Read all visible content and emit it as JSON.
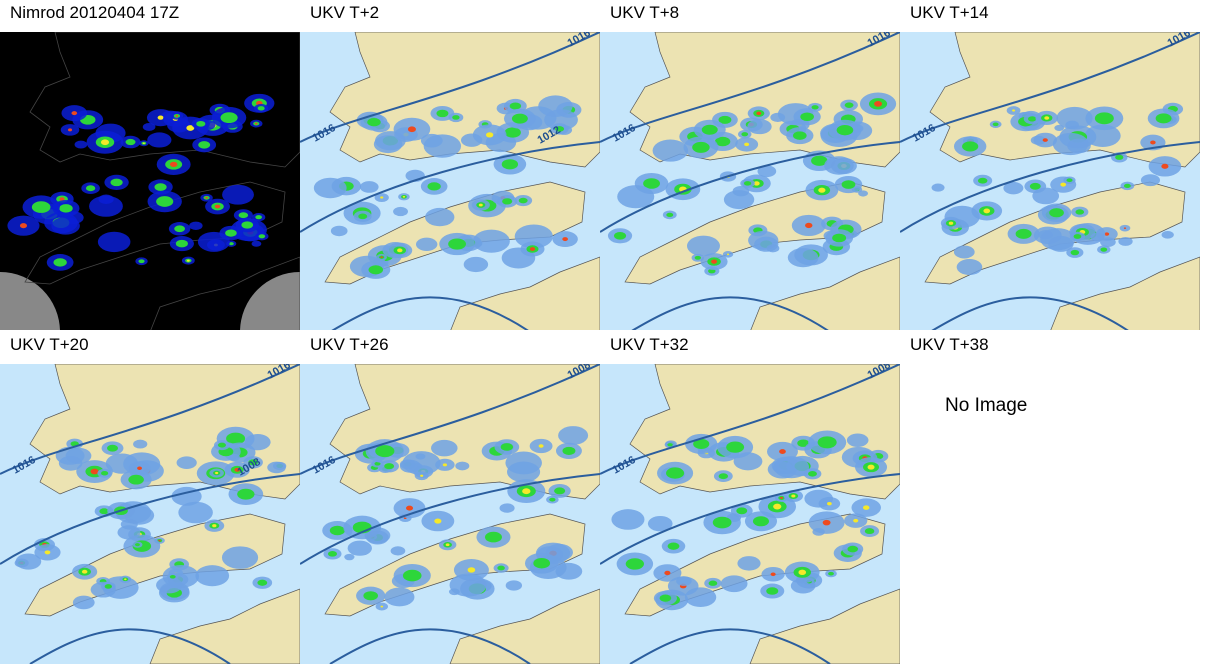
{
  "panels": [
    {
      "title": "Nimrod 20120404 17Z",
      "isobar_labels": []
    },
    {
      "title": "UKV T+2",
      "isobar_labels": [
        "1016",
        "1016",
        "1012"
      ]
    },
    {
      "title": "UKV T+8",
      "isobar_labels": [
        "1016",
        "1016"
      ]
    },
    {
      "title": "UKV T+14",
      "isobar_labels": [
        "1016",
        "1016"
      ]
    },
    {
      "title": "UKV T+20",
      "isobar_labels": [
        "1016",
        "1016",
        "1008"
      ]
    },
    {
      "title": "UKV T+26",
      "isobar_labels": [
        "1016",
        "1008"
      ]
    },
    {
      "title": "UKV T+32",
      "isobar_labels": [
        "1016",
        "1008"
      ]
    },
    {
      "title": "UKV T+38",
      "placeholder": "No Image"
    }
  ]
}
